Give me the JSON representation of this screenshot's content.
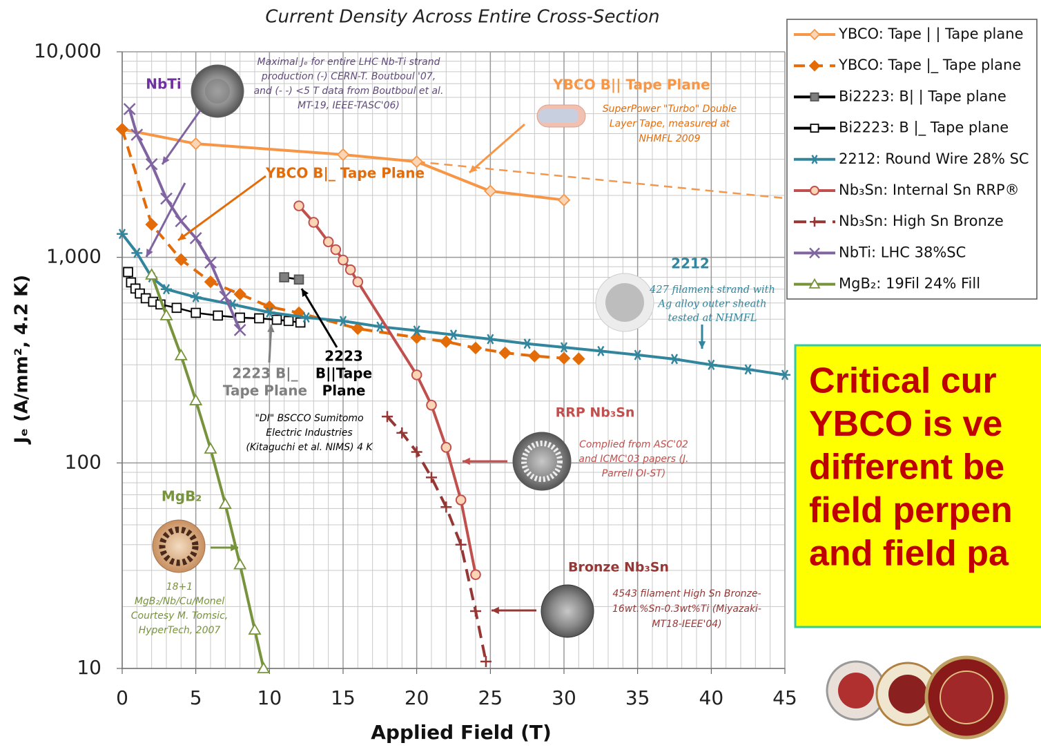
{
  "chart_data": {
    "type": "line",
    "title": "Current Density Across Entire Cross-Section",
    "x_label": "Applied Field (T)",
    "y_label": "Jₑ (A/mm², 4.2 K)",
    "yscale": "log",
    "grid": true,
    "xlim": [
      0,
      45
    ],
    "ylim": [
      10,
      10000
    ],
    "xticks": [
      0,
      5,
      10,
      15,
      20,
      25,
      30,
      35,
      40,
      45
    ],
    "yticks": [
      10,
      100,
      {
        "value": 1000,
        "label": "1,000"
      },
      {
        "value": 10000,
        "label": "10,000"
      }
    ],
    "xminorticks": [
      1,
      2,
      3,
      4,
      6,
      7,
      8,
      9,
      11,
      12,
      13,
      14,
      16,
      17,
      18,
      19,
      21,
      22,
      23,
      24,
      26,
      27,
      28,
      29,
      31,
      32,
      33,
      34,
      36,
      37,
      38,
      39,
      41,
      42,
      43,
      44
    ],
    "yminorticks": [
      20,
      30,
      40,
      50,
      60,
      70,
      80,
      90,
      200,
      300,
      400,
      500,
      600,
      700,
      800,
      900,
      2000,
      3000,
      4000,
      5000,
      6000,
      7000,
      8000,
      9000
    ],
    "series": [
      {
        "name": "YBCO: Tape | | Tape plane",
        "color": "#f79646",
        "marker": "diamond",
        "marker_fill": "#fbd5b5",
        "dash": "none",
        "x": [
          0,
          5,
          15,
          20,
          25,
          30
        ],
        "values": [
          4200,
          3570,
          3160,
          2920,
          2100,
          1900
        ]
      },
      {
        "name": "YBCO: Tape |_ Tape plane",
        "color": "#e36c09",
        "marker": "diamond",
        "marker_fill": "#e36c09",
        "dash": "16,10",
        "x": [
          0,
          2,
          4,
          6,
          8,
          10,
          12,
          16,
          20,
          22,
          24,
          26,
          28,
          30,
          31
        ],
        "values": [
          4200,
          1445,
          975,
          760,
          662,
          575,
          537,
          450,
          407,
          389,
          362,
          343,
          331,
          323,
          321
        ]
      },
      {
        "name": "Bi2223: B| | Tape plane",
        "color": "#000000",
        "marker": "square",
        "marker_fill": "#7f7f7f",
        "dash": "none",
        "x": [
          11,
          12
        ],
        "values": [
          800,
          780
        ]
      },
      {
        "name": "Bi2223: B |_ Tape plane",
        "color": "#000000",
        "marker": "square",
        "marker_fill": "#ffffff",
        "dash": "none",
        "x": [
          0.4,
          0.6,
          0.9,
          1.2,
          1.6,
          2.1,
          2.6,
          3.7,
          5,
          6.5,
          8,
          9.3,
          10.5,
          11.3,
          12.1
        ],
        "values": [
          848,
          755,
          705,
          667,
          632,
          608,
          590,
          568,
          537,
          521,
          509,
          505,
          497,
          490,
          482
        ]
      },
      {
        "name": "2212: Round Wire 28% SC",
        "color": "#31859c",
        "marker": "asterisk",
        "marker_fill": "none",
        "dash": "none",
        "x": [
          0,
          1,
          2,
          3,
          5,
          7.5,
          10,
          12.5,
          15,
          17.5,
          20,
          22.5,
          25,
          27.5,
          30,
          32.5,
          35,
          37.5,
          40,
          42.5,
          45
        ],
        "values": [
          1300,
          1050,
          800,
          700,
          640,
          590,
          540,
          510,
          490,
          460,
          440,
          420,
          400,
          380,
          365,
          350,
          335,
          320,
          300,
          285,
          268
        ]
      },
      {
        "name": "Nb₃Sn: Internal Sn RRP®",
        "color": "#c0504d",
        "marker": "circle",
        "marker_fill": "#fbd5b5",
        "dash": "none",
        "x": [
          12,
          13,
          14,
          14.5,
          15,
          15.5,
          16,
          20,
          21,
          22,
          23,
          24
        ],
        "values": [
          1780,
          1480,
          1190,
          1090,
          970,
          870,
          760,
          268,
          191,
          119,
          66,
          28.6
        ]
      },
      {
        "name": "Nb₃Sn: High Sn Bronze",
        "color": "#953735",
        "marker": "plus",
        "marker_fill": "none",
        "dash": "18,10",
        "x": [
          18,
          19,
          20,
          21,
          22,
          23,
          24,
          24.7
        ],
        "values": [
          168,
          140,
          113,
          85,
          61,
          40,
          19,
          10.8
        ]
      },
      {
        "name": "NbTi: LHC 38%SC",
        "color": "#8064a2",
        "marker": "x",
        "marker_fill": "none",
        "dash": "none",
        "x": [
          0.5,
          1,
          2,
          3,
          4,
          5,
          6,
          7,
          8
        ],
        "values": [
          5260,
          3950,
          2840,
          1930,
          1500,
          1240,
          944,
          643,
          443
        ]
      },
      {
        "name": "MgB₂: 19Fil 24% Fill",
        "color": "#77933c",
        "marker": "triangle",
        "marker_fill": "#ffffff",
        "dash": "none",
        "x": [
          2,
          3,
          4,
          5,
          6,
          7,
          8,
          9,
          9.6
        ],
        "values": [
          822,
          521,
          333,
          201,
          117,
          63,
          32,
          15.4,
          10
        ]
      }
    ],
    "extrapolation": {
      "color": "#f79646",
      "x": [
        20,
        45
      ],
      "values": [
        2920,
        1940
      ]
    },
    "annotations": [
      {
        "lines": [
          "NbTi"
        ],
        "color": "#7030a0",
        "style": "bold"
      },
      {
        "lines": [
          "Maximal Jₑ for entire LHC Nb-Ti strand",
          "production (-) CERN-T. Boutboul '07,",
          "and (- -) <5 T data from Boutboul et al.",
          "MT-19, IEEE-TASC'06)"
        ],
        "color": "#5f497a",
        "style": "italic"
      },
      {
        "lines": [
          "YBCO B|| Tape Plane"
        ],
        "color": "#f79646",
        "style": "bold"
      },
      {
        "lines": [
          "SuperPower \"Turbo\" Double",
          "Layer Tape, measured at",
          "NHMFL 2009"
        ],
        "color": "#e36c09",
        "style": "italic"
      },
      {
        "lines": [
          "YBCO B|_ Tape Plane"
        ],
        "color": "#e36c09",
        "style": "bold"
      },
      {
        "lines": [
          "2212"
        ],
        "color": "#31859c",
        "style": "bold"
      },
      {
        "lines": [
          "427 filament strand with",
          "Ag alloy outer sheath",
          "tested at NHMFL"
        ],
        "color": "#31859c",
        "style": "italic"
      },
      {
        "lines": [
          "2223 B|_",
          "Tape Plane"
        ],
        "color": "#7f7f7f",
        "style": "bold"
      },
      {
        "lines": [
          "2223",
          "B||Tape",
          "Plane"
        ],
        "color": "#000000",
        "style": "bold"
      },
      {
        "lines": [
          "\"DI\" BSCCO Sumitomo",
          "Electric Industries",
          "(Kitaguchi et al. NIMS) 4 K"
        ],
        "color": "#000000",
        "style": "italic"
      },
      {
        "lines": [
          "RRP Nb₃Sn"
        ],
        "color": "#c0504d",
        "style": "bold"
      },
      {
        "lines": [
          "Complied from ASC'02",
          "and ICMC'03 papers (J.",
          "Parrell OI-ST)"
        ],
        "color": "#c0504d",
        "style": "italic"
      },
      {
        "lines": [
          "MgB₂"
        ],
        "color": "#77933c",
        "style": "bold"
      },
      {
        "lines": [
          "18+1",
          "MgB₂/Nb/Cu/Monel",
          "Courtesy M. Tomsic,",
          "HyperTech, 2007"
        ],
        "color": "#77933c",
        "style": "italic"
      },
      {
        "lines": [
          "Bronze Nb₃Sn"
        ],
        "color": "#953735",
        "style": "bold"
      },
      {
        "lines": [
          "4543 filament High Sn Bronze-",
          "16wt.%Sn-0.3wt%Ti (Miyazaki-",
          "MT18-IEEE'04)"
        ],
        "color": "#953735",
        "style": "italic"
      }
    ],
    "callout": {
      "lines": [
        "Critical cur",
        "YBCO is ve",
        "different be",
        "field perpen",
        "and field pa"
      ]
    }
  }
}
